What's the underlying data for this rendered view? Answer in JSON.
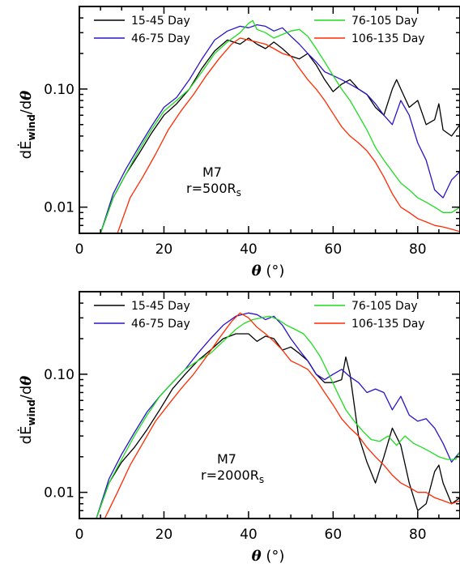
{
  "chart_data": [
    {
      "type": "line",
      "xlabel_symbol": "θ",
      "xlabel_unit": "(°)",
      "ylabel": {
        "prefix": "d",
        "symbol": "Ė",
        "subscript": "wind",
        "divider": "/d",
        "var": "θ"
      },
      "xlim": [
        0,
        90
      ],
      "ylim": [
        0.006,
        0.5
      ],
      "yscale": "log",
      "x_ticks": [
        "0",
        "20",
        "40",
        "60",
        "80"
      ],
      "x_tick_values": [
        0,
        20,
        40,
        60,
        80
      ],
      "y_ticks": [
        "0.01",
        "0.10"
      ],
      "y_tick_values": [
        0.01,
        0.1
      ],
      "annotation": {
        "model": "M7",
        "radius_prefix": "r=500R",
        "radius_sub": "s"
      },
      "legend_placement": "top",
      "series": [
        {
          "name": "15-45 Day",
          "color": "#000000",
          "x": [
            5,
            8,
            11,
            14,
            17,
            20,
            23,
            26,
            29,
            32,
            35,
            38,
            40,
            42,
            44,
            46,
            48,
            50,
            52,
            54,
            56,
            58,
            60,
            62,
            64,
            66,
            68,
            70,
            72,
            74,
            75,
            76,
            78,
            80,
            82,
            84,
            85,
            86,
            88,
            90
          ],
          "y": [
            0.006,
            0.012,
            0.019,
            0.028,
            0.042,
            0.06,
            0.075,
            0.1,
            0.15,
            0.21,
            0.26,
            0.24,
            0.27,
            0.24,
            0.22,
            0.25,
            0.22,
            0.19,
            0.18,
            0.2,
            0.16,
            0.12,
            0.095,
            0.11,
            0.12,
            0.1,
            0.09,
            0.07,
            0.06,
            0.1,
            0.12,
            0.1,
            0.07,
            0.08,
            0.05,
            0.055,
            0.075,
            0.045,
            0.04,
            0.05
          ]
        },
        {
          "name": "46-75 Day",
          "color": "#2a14c8",
          "x": [
            5,
            8,
            11,
            14,
            17,
            20,
            23,
            26,
            29,
            32,
            35,
            38,
            40,
            42,
            44,
            46,
            48,
            50,
            52,
            54,
            56,
            58,
            60,
            62,
            64,
            66,
            68,
            70,
            72,
            74,
            76,
            78,
            80,
            82,
            84,
            86,
            88,
            90
          ],
          "y": [
            0.006,
            0.013,
            0.021,
            0.032,
            0.048,
            0.07,
            0.085,
            0.12,
            0.18,
            0.26,
            0.31,
            0.34,
            0.33,
            0.35,
            0.34,
            0.31,
            0.33,
            0.28,
            0.24,
            0.2,
            0.17,
            0.14,
            0.13,
            0.12,
            0.11,
            0.1,
            0.09,
            0.075,
            0.06,
            0.05,
            0.08,
            0.06,
            0.035,
            0.025,
            0.014,
            0.012,
            0.017,
            0.02
          ]
        },
        {
          "name": "76-105 Day",
          "color": "#1edc1e",
          "x": [
            5,
            8,
            11,
            14,
            17,
            20,
            23,
            26,
            29,
            32,
            35,
            38,
            40,
            41,
            42,
            44,
            46,
            48,
            50,
            52,
            54,
            56,
            58,
            60,
            62,
            64,
            66,
            68,
            70,
            72,
            74,
            76,
            78,
            80,
            82,
            84,
            86,
            88,
            90
          ],
          "y": [
            0.006,
            0.012,
            0.019,
            0.03,
            0.045,
            0.065,
            0.08,
            0.1,
            0.14,
            0.2,
            0.25,
            0.3,
            0.36,
            0.38,
            0.32,
            0.3,
            0.27,
            0.29,
            0.31,
            0.32,
            0.28,
            0.22,
            0.17,
            0.13,
            0.1,
            0.08,
            0.06,
            0.045,
            0.032,
            0.025,
            0.02,
            0.016,
            0.014,
            0.012,
            0.011,
            0.01,
            0.009,
            0.009,
            0.01
          ]
        },
        {
          "name": "106-135 Day",
          "color": "#ff2a00",
          "x": [
            9,
            12,
            15,
            18,
            21,
            24,
            27,
            30,
            33,
            36,
            38,
            40,
            42,
            44,
            46,
            48,
            50,
            52,
            54,
            56,
            58,
            60,
            62,
            64,
            66,
            68,
            70,
            72,
            74,
            76,
            78,
            80,
            82,
            84,
            86,
            88,
            90
          ],
          "y": [
            0.006,
            0.012,
            0.018,
            0.028,
            0.045,
            0.065,
            0.09,
            0.13,
            0.18,
            0.24,
            0.27,
            0.26,
            0.25,
            0.24,
            0.22,
            0.2,
            0.19,
            0.15,
            0.12,
            0.1,
            0.08,
            0.062,
            0.048,
            0.04,
            0.035,
            0.03,
            0.024,
            0.018,
            0.013,
            0.01,
            0.009,
            0.008,
            0.0075,
            0.007,
            0.0068,
            0.0065,
            0.0062
          ]
        }
      ]
    },
    {
      "type": "line",
      "xlabel_symbol": "θ",
      "xlabel_unit": "(°)",
      "ylabel": {
        "prefix": "d",
        "symbol": "Ė",
        "subscript": "wind",
        "divider": "/d",
        "var": "θ"
      },
      "xlim": [
        0,
        90
      ],
      "ylim": [
        0.006,
        0.5
      ],
      "yscale": "log",
      "x_ticks": [
        "0",
        "20",
        "40",
        "60",
        "80"
      ],
      "x_tick_values": [
        0,
        20,
        40,
        60,
        80
      ],
      "y_ticks": [
        "0.01",
        "0.10"
      ],
      "y_tick_values": [
        0.01,
        0.1
      ],
      "annotation": {
        "model": "M7",
        "radius_prefix": "r=2000R",
        "radius_sub": "s"
      },
      "legend_placement": "top",
      "series": [
        {
          "name": "15-45 Day",
          "color": "#000000",
          "x": [
            4,
            7,
            10,
            13,
            16,
            19,
            22,
            25,
            28,
            31,
            34,
            37,
            40,
            42,
            44,
            46,
            48,
            50,
            52,
            54,
            56,
            58,
            60,
            62,
            63,
            64,
            66,
            68,
            70,
            72,
            74,
            76,
            78,
            80,
            82,
            84,
            85,
            86,
            88,
            90
          ],
          "y": [
            0.006,
            0.012,
            0.018,
            0.024,
            0.034,
            0.05,
            0.075,
            0.1,
            0.13,
            0.16,
            0.2,
            0.22,
            0.22,
            0.19,
            0.21,
            0.2,
            0.16,
            0.17,
            0.15,
            0.13,
            0.1,
            0.085,
            0.085,
            0.09,
            0.14,
            0.1,
            0.03,
            0.018,
            0.012,
            0.02,
            0.035,
            0.025,
            0.012,
            0.007,
            0.008,
            0.015,
            0.017,
            0.012,
            0.008,
            0.009
          ]
        },
        {
          "name": "46-75 Day",
          "color": "#2a14c8",
          "x": [
            4,
            7,
            10,
            13,
            16,
            19,
            22,
            25,
            28,
            31,
            34,
            37,
            40,
            42,
            44,
            46,
            48,
            50,
            52,
            54,
            56,
            58,
            60,
            62,
            64,
            66,
            68,
            70,
            72,
            74,
            76,
            78,
            80,
            82,
            84,
            86,
            88,
            90
          ],
          "y": [
            0.006,
            0.013,
            0.021,
            0.032,
            0.048,
            0.065,
            0.085,
            0.11,
            0.15,
            0.2,
            0.26,
            0.31,
            0.33,
            0.32,
            0.29,
            0.31,
            0.26,
            0.2,
            0.16,
            0.13,
            0.1,
            0.09,
            0.1,
            0.11,
            0.095,
            0.085,
            0.07,
            0.075,
            0.07,
            0.05,
            0.065,
            0.045,
            0.04,
            0.042,
            0.035,
            0.026,
            0.018,
            0.022
          ]
        },
        {
          "name": "76-105 Day",
          "color": "#1edc1e",
          "x": [
            4,
            7,
            10,
            13,
            16,
            19,
            22,
            25,
            28,
            31,
            34,
            37,
            39,
            41,
            43,
            45,
            47,
            49,
            51,
            53,
            55,
            57,
            59,
            61,
            63,
            65,
            67,
            69,
            71,
            73,
            75,
            77,
            79,
            81,
            83,
            85,
            87,
            89,
            90
          ],
          "y": [
            0.006,
            0.012,
            0.019,
            0.03,
            0.045,
            0.065,
            0.085,
            0.11,
            0.13,
            0.15,
            0.19,
            0.24,
            0.27,
            0.29,
            0.3,
            0.31,
            0.29,
            0.26,
            0.24,
            0.22,
            0.18,
            0.14,
            0.1,
            0.07,
            0.05,
            0.04,
            0.033,
            0.028,
            0.027,
            0.03,
            0.025,
            0.03,
            0.026,
            0.024,
            0.022,
            0.02,
            0.019,
            0.019,
            0.022
          ]
        },
        {
          "name": "106-135 Day",
          "color": "#ff2a00",
          "x": [
            6,
            9,
            12,
            15,
            18,
            21,
            24,
            27,
            30,
            33,
            36,
            38,
            40,
            42,
            44,
            46,
            48,
            50,
            52,
            54,
            56,
            58,
            60,
            62,
            64,
            66,
            68,
            70,
            72,
            74,
            76,
            78,
            80,
            82,
            84,
            86,
            88,
            90
          ],
          "y": [
            0.006,
            0.01,
            0.017,
            0.026,
            0.04,
            0.055,
            0.075,
            0.1,
            0.14,
            0.2,
            0.28,
            0.33,
            0.3,
            0.25,
            0.22,
            0.19,
            0.16,
            0.13,
            0.12,
            0.11,
            0.09,
            0.07,
            0.055,
            0.042,
            0.035,
            0.03,
            0.024,
            0.02,
            0.017,
            0.014,
            0.012,
            0.011,
            0.01,
            0.01,
            0.009,
            0.0085,
            0.008,
            0.0085
          ]
        }
      ]
    }
  ]
}
